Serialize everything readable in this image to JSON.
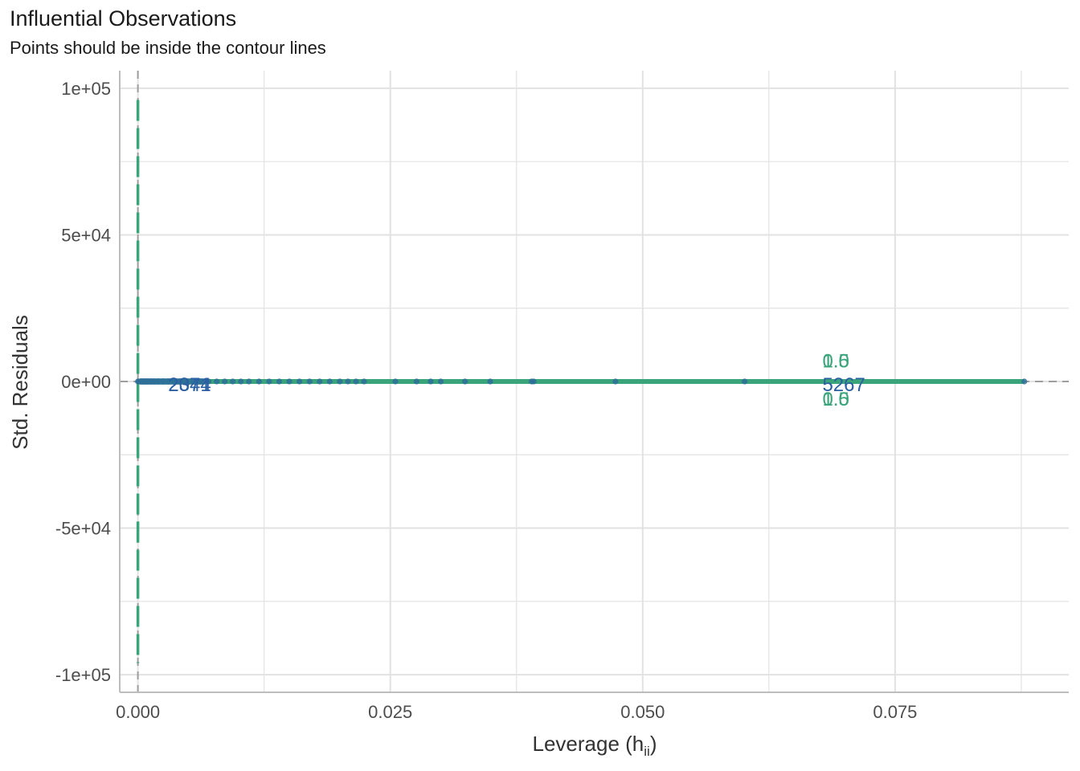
{
  "chart_data": {
    "type": "scatter",
    "title": "Influential Observations",
    "subtitle": "Points should be inside the contour lines",
    "xlabel": "Leverage (h",
    "xlabel_subscript": "ii",
    "xlabel_suffix": ")",
    "ylabel": "Std. Residuals",
    "xlim": [
      -0.0018,
      0.0922
    ],
    "ylim": [
      -106000,
      106000
    ],
    "x_ticks": [
      0.0,
      0.025,
      0.05,
      0.075
    ],
    "x_tick_labels": [
      "0.000",
      "0.025",
      "0.050",
      "0.075"
    ],
    "y_ticks": [
      100000,
      50000,
      0,
      -50000,
      -100000
    ],
    "y_tick_labels": [
      "1e+05",
      "5e+04",
      "0e+00",
      "-5e+04",
      "-1e+05"
    ],
    "grid": true,
    "colors": {
      "points": "#2e6f99",
      "contour": "#3aa57a",
      "reference_lines": "#9e9e9e",
      "labels": "#2b5fa3",
      "grid": "#e2e2e2",
      "axis": "#bdbdbd"
    },
    "points": [
      {
        "x": 0.0,
        "y": 0
      },
      {
        "x": 0.0001,
        "y": 0
      },
      {
        "x": 0.0002,
        "y": 0
      },
      {
        "x": 0.0003,
        "y": 0
      },
      {
        "x": 0.00045,
        "y": 0
      },
      {
        "x": 0.0006,
        "y": 0
      },
      {
        "x": 0.0008,
        "y": 0
      },
      {
        "x": 0.001,
        "y": 0
      },
      {
        "x": 0.0013,
        "y": 0
      },
      {
        "x": 0.0016,
        "y": 0
      },
      {
        "x": 0.002,
        "y": 0
      },
      {
        "x": 0.0025,
        "y": 0
      },
      {
        "x": 0.003,
        "y": 0
      },
      {
        "x": 0.0036,
        "y": 0
      },
      {
        "x": 0.0042,
        "y": 0
      },
      {
        "x": 0.0048,
        "y": 0
      },
      {
        "x": 0.0055,
        "y": 0
      },
      {
        "x": 0.0062,
        "y": 0
      },
      {
        "x": 0.007,
        "y": 0
      },
      {
        "x": 0.0078,
        "y": 0
      },
      {
        "x": 0.0086,
        "y": 0
      },
      {
        "x": 0.0094,
        "y": 0
      },
      {
        "x": 0.0102,
        "y": 0
      },
      {
        "x": 0.011,
        "y": 0
      },
      {
        "x": 0.012,
        "y": 0
      },
      {
        "x": 0.013,
        "y": 0
      },
      {
        "x": 0.014,
        "y": 0
      },
      {
        "x": 0.015,
        "y": 0
      },
      {
        "x": 0.016,
        "y": 0
      },
      {
        "x": 0.017,
        "y": 0
      },
      {
        "x": 0.018,
        "y": 0
      },
      {
        "x": 0.019,
        "y": 0
      },
      {
        "x": 0.02,
        "y": 0
      },
      {
        "x": 0.0208,
        "y": 0
      },
      {
        "x": 0.0216,
        "y": 0
      },
      {
        "x": 0.0224,
        "y": 0
      },
      {
        "x": 0.0255,
        "y": 0
      },
      {
        "x": 0.0276,
        "y": 0
      },
      {
        "x": 0.029,
        "y": 0
      },
      {
        "x": 0.03,
        "y": 0
      },
      {
        "x": 0.0324,
        "y": 0
      },
      {
        "x": 0.0349,
        "y": 0
      },
      {
        "x": 0.039,
        "y": 0
      },
      {
        "x": 0.0392,
        "y": 0
      },
      {
        "x": 0.0473,
        "y": 0
      },
      {
        "x": 0.0601,
        "y": 0
      },
      {
        "x": 0.0878,
        "y": 0
      }
    ],
    "point_labels": [
      {
        "text": "2044",
        "x": 0.003,
        "y": 0
      },
      {
        "text": "2371",
        "x": 0.003,
        "y": 0
      },
      {
        "text": "5267",
        "x": 0.0678,
        "y": 0
      }
    ],
    "contour_labels": [
      {
        "text": "0.5",
        "x": 0.0678,
        "y": 7000
      },
      {
        "text": "1.0",
        "x": 0.0678,
        "y": 7000
      },
      {
        "text": "0.5",
        "x": 0.0678,
        "y": -6000
      },
      {
        "text": "1.0",
        "x": 0.0678,
        "y": -6000
      }
    ]
  }
}
